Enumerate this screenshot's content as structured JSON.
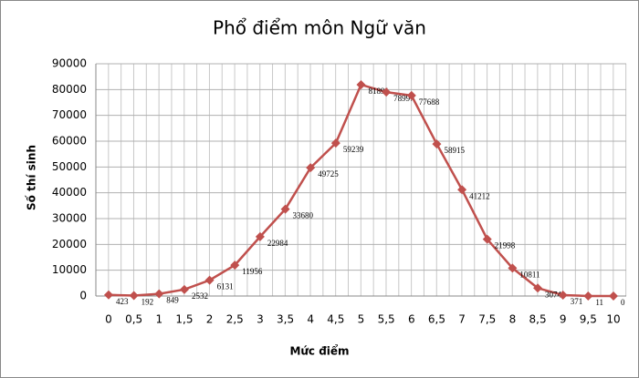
{
  "chart_data": {
    "type": "line",
    "title": "Phổ điểm môn Ngữ văn",
    "x_label": "Mức điểm",
    "y_label": "Số thí sinh",
    "categories": [
      "0",
      "0,5",
      "1",
      "1,5",
      "2",
      "2,5",
      "3",
      "3,5",
      "4",
      "4,5",
      "5",
      "5,5",
      "6",
      "6,5",
      "7",
      "7,5",
      "8",
      "8,5",
      "9",
      "9,5",
      "10"
    ],
    "series": [
      {
        "name": "Số thí sinh",
        "color": "#c0504d",
        "values": [
          423,
          192,
          849,
          2532,
          6131,
          11956,
          22984,
          33680,
          49725,
          59239,
          81891,
          78997,
          77688,
          58915,
          41212,
          21998,
          10811,
          3074,
          371,
          11,
          0
        ]
      }
    ],
    "ylim": [
      0,
      90000
    ],
    "yticks": [
      0,
      10000,
      20000,
      30000,
      40000,
      50000,
      60000,
      70000,
      80000,
      90000
    ],
    "grid": true
  }
}
